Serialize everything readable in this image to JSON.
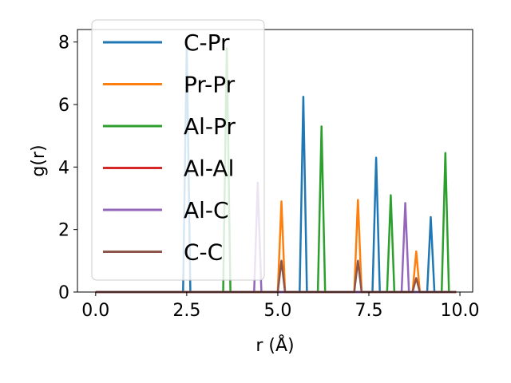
{
  "chart_data": {
    "type": "line",
    "xlabel": "r (Å)",
    "ylabel": "g(r)",
    "xlim": [
      -0.5,
      10.35
    ],
    "ylim": [
      0,
      8.4
    ],
    "xticks": [
      0.0,
      2.5,
      5.0,
      7.5,
      10.0
    ],
    "xtick_labels": [
      "0.0",
      "2.5",
      "5.0",
      "7.5",
      "10.0"
    ],
    "yticks": [
      0,
      2,
      4,
      6,
      8
    ],
    "ytick_labels": [
      "0",
      "2",
      "4",
      "6",
      "8"
    ],
    "grid": false,
    "legend_position": "upper-left",
    "x_range": [
      0.0,
      9.9
    ],
    "peak_half_width": 0.1,
    "series": [
      {
        "name": "C-Pr",
        "color": "#1f77b4",
        "peaks": [
          [
            2.5,
            7.9
          ],
          [
            5.7,
            6.25
          ],
          [
            7.7,
            4.3
          ],
          [
            9.2,
            2.4
          ]
        ]
      },
      {
        "name": "Pr-Pr",
        "color": "#ff7f0e",
        "peaks": [
          [
            5.1,
            2.9
          ],
          [
            7.2,
            2.95
          ],
          [
            8.8,
            1.3
          ]
        ]
      },
      {
        "name": "Al-Pr",
        "color": "#2ca02c",
        "peaks": [
          [
            3.6,
            7.8
          ],
          [
            6.2,
            5.3
          ],
          [
            8.1,
            3.1
          ],
          [
            9.6,
            4.45
          ]
        ]
      },
      {
        "name": "Al-Al",
        "color": "#d62728",
        "peaks": [
          [
            5.1,
            0.0
          ]
        ]
      },
      {
        "name": "Al-C",
        "color": "#9467bd",
        "peaks": [
          [
            4.45,
            3.5
          ],
          [
            8.5,
            2.85
          ]
        ]
      },
      {
        "name": "C-C",
        "color": "#8c564b",
        "peaks": [
          [
            5.1,
            1.0
          ],
          [
            7.2,
            1.0
          ],
          [
            8.8,
            0.45
          ]
        ]
      }
    ]
  }
}
